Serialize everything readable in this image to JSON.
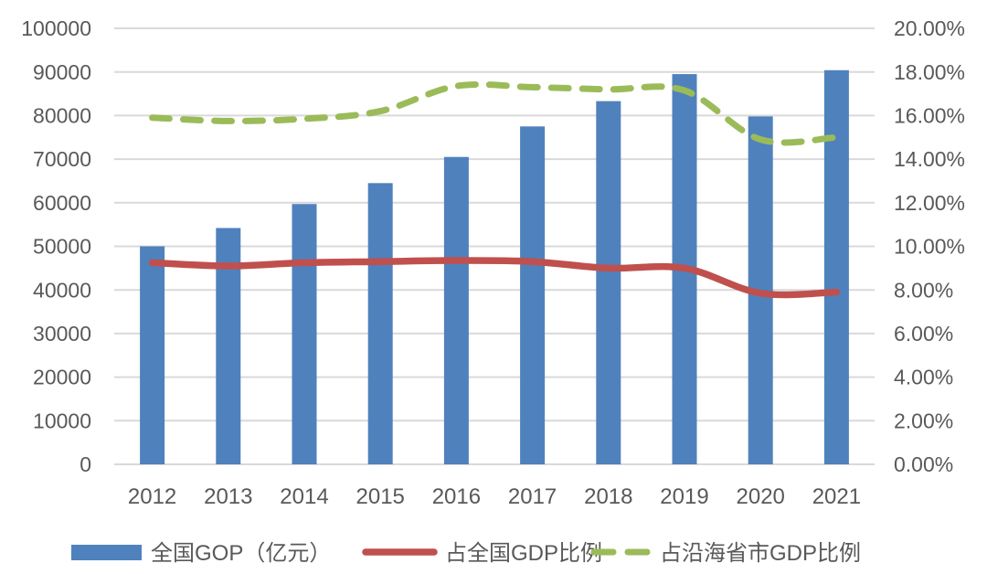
{
  "chart_data": {
    "type": "combo-bar-line",
    "title": "",
    "categories": [
      "2012",
      "2013",
      "2014",
      "2015",
      "2016",
      "2017",
      "2018",
      "2019",
      "2020",
      "2021"
    ],
    "series": [
      {
        "name": "全国GOP（亿元）",
        "type": "bar",
        "axis": "left",
        "color": "#4F81BD",
        "values": [
          50000,
          54200,
          59700,
          64500,
          70500,
          77500,
          83300,
          89500,
          79800,
          90400
        ]
      },
      {
        "name": "占全国GDP比例",
        "type": "line",
        "line_style": "solid",
        "axis": "right",
        "color": "#C0504D",
        "values_percent": [
          9.25,
          9.1,
          9.25,
          9.3,
          9.35,
          9.3,
          9.0,
          9.0,
          7.85,
          7.9
        ]
      },
      {
        "name": "占沿海省市GDP比例",
        "type": "line",
        "line_style": "dashed",
        "axis": "right",
        "color": "#9BBB59",
        "values_percent": [
          15.9,
          15.75,
          15.85,
          16.2,
          17.35,
          17.3,
          17.2,
          17.15,
          14.9,
          15.0
        ]
      }
    ],
    "left_axis": {
      "min": 0,
      "max": 100000,
      "step": 10000,
      "tick_labels": [
        "100000",
        "90000",
        "80000",
        "70000",
        "60000",
        "50000",
        "40000",
        "30000",
        "20000",
        "10000",
        "0"
      ]
    },
    "right_axis": {
      "min": 0,
      "max": 20,
      "step": 2,
      "tick_labels": [
        "20.00%",
        "18.00%",
        "16.00%",
        "14.00%",
        "12.00%",
        "10.00%",
        "8.00%",
        "6.00%",
        "4.00%",
        "2.00%",
        "0.00%"
      ]
    },
    "grid": true,
    "legend_position": "bottom",
    "text_color": "#595959",
    "gridline_color": "#D9D9D9",
    "background": "#FFFFFF"
  }
}
